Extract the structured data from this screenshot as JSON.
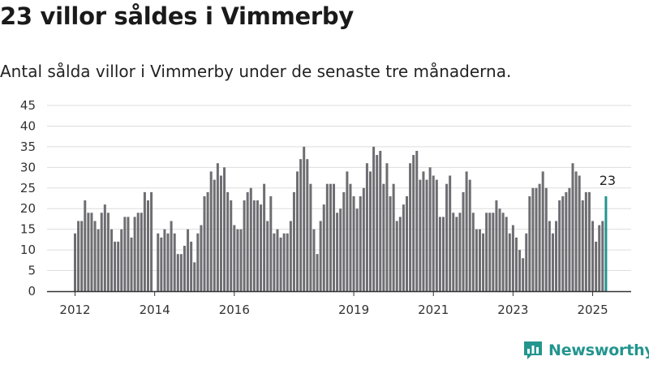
{
  "title": "23 villor såldes i Vimmerby",
  "subtitle": "Antal sålda villor i Vimmerby under de senaste tre månaderna.",
  "brand": {
    "name": "Newsworthy",
    "color": "#23958f",
    "icon": "newsworthy-logo-icon"
  },
  "colors": {
    "bar": "#6d6d72",
    "highlight": "#23958f",
    "grid": "#dddddd",
    "axis": "#333333"
  },
  "chart_data": {
    "type": "bar",
    "x_start": "2012-01",
    "ylim": [
      0,
      45
    ],
    "yticks": [
      0,
      5,
      10,
      15,
      20,
      25,
      30,
      35,
      40,
      45
    ],
    "xticks": [
      {
        "label": "2012",
        "index": 0
      },
      {
        "label": "2014",
        "index": 24
      },
      {
        "label": "2016",
        "index": 48
      },
      {
        "label": "2019",
        "index": 84
      },
      {
        "label": "2021",
        "index": 108
      },
      {
        "label": "2023",
        "index": 132
      },
      {
        "label": "2025",
        "index": 156
      }
    ],
    "grid": true,
    "values": [
      14,
      17,
      17,
      22,
      19,
      19,
      17,
      15,
      19,
      21,
      19,
      15,
      12,
      12,
      15,
      18,
      18,
      13,
      18,
      19,
      19,
      24,
      22,
      24,
      0,
      14,
      13,
      15,
      14,
      17,
      14,
      9,
      9,
      11,
      15,
      12,
      7,
      14,
      16,
      23,
      24,
      29,
      27,
      31,
      28,
      30,
      24,
      22,
      16,
      15,
      15,
      22,
      24,
      25,
      22,
      22,
      21,
      26,
      17,
      23,
      14,
      15,
      13,
      14,
      14,
      17,
      24,
      29,
      32,
      35,
      32,
      26,
      15,
      9,
      17,
      21,
      26,
      26,
      26,
      19,
      20,
      24,
      29,
      26,
      23,
      20,
      23,
      25,
      31,
      29,
      35,
      33,
      34,
      26,
      31,
      23,
      26,
      17,
      18,
      21,
      23,
      31,
      33,
      34,
      27,
      29,
      27,
      30,
      28,
      27,
      18,
      18,
      26,
      28,
      19,
      18,
      19,
      24,
      29,
      27,
      19,
      15,
      15,
      14,
      19,
      19,
      19,
      22,
      20,
      19,
      18,
      14,
      16,
      13,
      10,
      8,
      14,
      23,
      25,
      25,
      26,
      29,
      25,
      17,
      14,
      17,
      22,
      23,
      24,
      25,
      31,
      29,
      28,
      22,
      24,
      24,
      17,
      12,
      16,
      17,
      23
    ],
    "highlight_last": true,
    "highlight_label": "23"
  }
}
